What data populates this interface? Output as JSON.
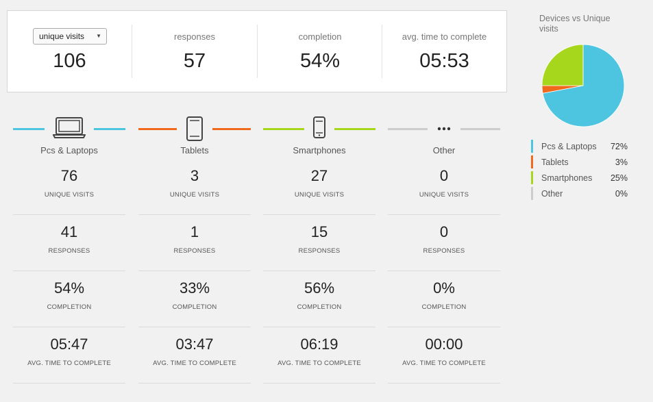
{
  "summary": {
    "select_value": "unique visits",
    "unique_visits": "106",
    "responses_label": "responses",
    "responses": "57",
    "completion_label": "completion",
    "completion": "54%",
    "avg_time_label": "avg. time to complete",
    "avg_time": "05:53"
  },
  "devices": [
    {
      "name": "Pcs & Laptops",
      "color": "#4ec5e0",
      "icon": "laptop-icon",
      "unique_visits": "76",
      "responses": "41",
      "completion": "54%",
      "avg_time": "05:47"
    },
    {
      "name": "Tablets",
      "color": "#f06a1e",
      "icon": "tablet-icon",
      "unique_visits": "3",
      "responses": "1",
      "completion": "33%",
      "avg_time": "03:47"
    },
    {
      "name": "Smartphones",
      "color": "#a6d71c",
      "icon": "smartphone-icon",
      "unique_visits": "27",
      "responses": "15",
      "completion": "56%",
      "avg_time": "06:19"
    },
    {
      "name": "Other",
      "color": "#cccccc",
      "icon": "more-dots-icon",
      "unique_visits": "0",
      "responses": "0",
      "completion": "0%",
      "avg_time": "00:00"
    }
  ],
  "stat_labels": {
    "unique_visits": "UNIQUE VISITS",
    "responses": "RESPONSES",
    "completion": "COMPLETION",
    "avg_time": "AVG. TIME TO COMPLETE"
  },
  "chart_data": {
    "type": "pie",
    "title": "Devices vs Unique visits",
    "slices": [
      {
        "label": "Pcs & Laptops",
        "value": 72,
        "display": "72%",
        "color": "#4ec5e0"
      },
      {
        "label": "Tablets",
        "value": 3,
        "display": "3%",
        "color": "#f06a1e"
      },
      {
        "label": "Smartphones",
        "value": 25,
        "display": "25%",
        "color": "#a6d71c"
      },
      {
        "label": "Other",
        "value": 0,
        "display": "0%",
        "color": "#cccccc"
      }
    ],
    "legend_position": "bottom"
  }
}
